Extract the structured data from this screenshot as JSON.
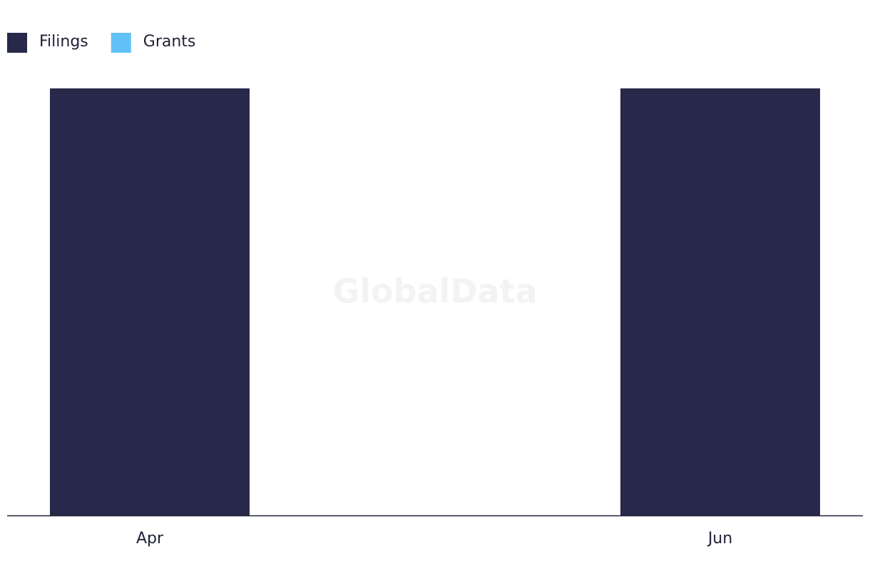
{
  "chart_data": {
    "type": "bar",
    "stacked": true,
    "watermark": "GlobalData",
    "categories": [
      "Apr",
      null,
      "Jun"
    ],
    "series": [
      {
        "name": "Filings",
        "color": "#28284a",
        "values": [
          1,
          0,
          1
        ]
      },
      {
        "name": "Grants",
        "color": "#62c2f7",
        "values": [
          0,
          0,
          0
        ]
      }
    ],
    "ylim": [
      0,
      1
    ]
  }
}
